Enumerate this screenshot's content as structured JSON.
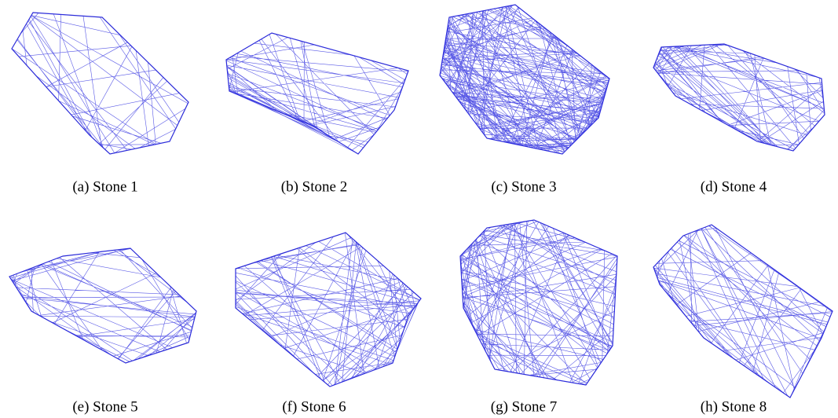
{
  "figure": {
    "panels": [
      {
        "caption": "(a) Stone 1"
      },
      {
        "caption": "(b) Stone 2"
      },
      {
        "caption": "(c) Stone 3"
      },
      {
        "caption": "(d) Stone 4"
      },
      {
        "caption": "(e) Stone 5"
      },
      {
        "caption": "(f) Stone 6"
      },
      {
        "caption": "(g) Stone 7"
      },
      {
        "caption": "(h) Stone 8"
      }
    ]
  }
}
